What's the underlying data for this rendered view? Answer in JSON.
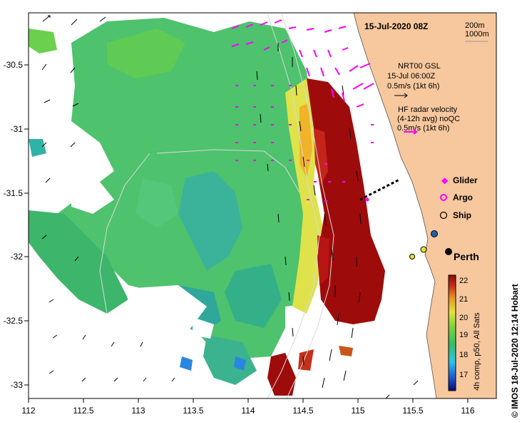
{
  "header": {
    "timestamp": "15-Jul-2020 08Z"
  },
  "depth_contours": {
    "label_200": "200m",
    "label_1000": "1000m"
  },
  "gsl_info": {
    "line1": "NRT00 GSL",
    "line2": "15-Jul 06:00Z",
    "line3": "0.5m/s (1kt 6h)"
  },
  "hf_radar_info": {
    "line1": "HF radar velocity",
    "line2": "(4-12h avg) noQC",
    "line3": "0.5m/s (1kt 6h)"
  },
  "platform_legend": {
    "glider": "Glider",
    "argo": "Argo",
    "ship": "Ship"
  },
  "place_label": "Perth",
  "colorbar": {
    "ticks": [
      "17",
      "18",
      "19",
      "20",
      "21",
      "22"
    ],
    "caption": "4h comp, p50, All Sats"
  },
  "credit": "© IMOS 18-Jul-2020 12:14 Hobart",
  "x_axis": {
    "ticks": [
      "112",
      "112.5",
      "113",
      "113.5",
      "114",
      "114.5",
      "115",
      "115.5",
      "116"
    ]
  },
  "y_axis": {
    "ticks": [
      "-30.5",
      "-31",
      "-31.5",
      "-32",
      "-32.5",
      "-33"
    ]
  },
  "colors": {
    "land": "#f7c79d",
    "cold": "#3fb37f",
    "warm": "#9e0b0b",
    "front": "#e6e35a",
    "radar_vector": "#ff00ff",
    "glider_track": "#000000"
  }
}
